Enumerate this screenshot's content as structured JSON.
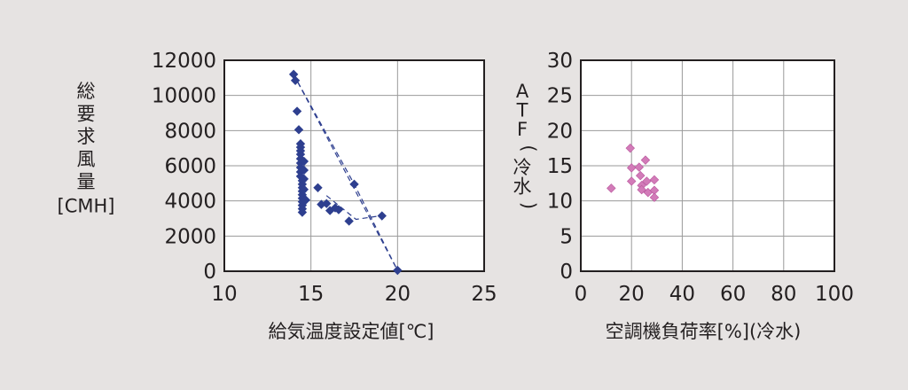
{
  "chart_data": [
    {
      "type": "scatter",
      "xlabel": "給気温度設定値[℃]",
      "ylabel_lines": [
        "総",
        "要",
        "求",
        "風",
        "量",
        "[CMH]"
      ],
      "xlim": [
        10,
        25
      ],
      "ylim": [
        0,
        12000
      ],
      "xticks": [
        "10",
        "15",
        "20",
        "25"
      ],
      "yticks": [
        "0",
        "2000",
        "4000",
        "6000",
        "8000",
        "10000",
        "12000"
      ],
      "grid": true,
      "marker": "diamond",
      "marker_color": "#2e3f8f",
      "points": [
        [
          14.0,
          11200
        ],
        [
          14.1,
          10850
        ],
        [
          14.2,
          9100
        ],
        [
          14.3,
          8050
        ],
        [
          14.4,
          7250
        ],
        [
          14.4,
          7050
        ],
        [
          14.4,
          6850
        ],
        [
          14.4,
          6650
        ],
        [
          14.4,
          6400
        ],
        [
          14.4,
          6150
        ],
        [
          14.4,
          5900
        ],
        [
          14.4,
          5650
        ],
        [
          14.4,
          5400
        ],
        [
          14.5,
          5150
        ],
        [
          14.5,
          4950
        ],
        [
          14.5,
          4750
        ],
        [
          14.5,
          4550
        ],
        [
          14.5,
          4350
        ],
        [
          14.5,
          4150
        ],
        [
          14.5,
          3950
        ],
        [
          14.5,
          3750
        ],
        [
          14.5,
          3550
        ],
        [
          14.5,
          3350
        ],
        [
          14.6,
          6250
        ],
        [
          14.6,
          5750
        ],
        [
          14.6,
          5250
        ],
        [
          14.6,
          4650
        ],
        [
          14.7,
          4050
        ],
        [
          15.4,
          4750
        ],
        [
          15.6,
          3800
        ],
        [
          15.9,
          3850
        ],
        [
          16.1,
          3450
        ],
        [
          16.4,
          3600
        ],
        [
          16.6,
          3500
        ],
        [
          17.2,
          2850
        ],
        [
          17.5,
          4950
        ],
        [
          19.1,
          3150
        ],
        [
          20.0,
          50
        ]
      ],
      "dashed_lines": [
        [
          [
            14.0,
            11200
          ],
          [
            20.0,
            50
          ]
        ],
        [
          [
            14.0,
            11200
          ],
          [
            17.5,
            4950
          ],
          [
            20.0,
            50
          ]
        ],
        [
          [
            15.9,
            4300
          ],
          [
            17.6,
            2950
          ],
          [
            19.0,
            3150
          ]
        ]
      ]
    },
    {
      "type": "scatter",
      "xlabel": "空調機負荷率[%](冷水)",
      "ylabel_lines": [
        "A",
        "T",
        "F",
        "(",
        "冷",
        "水",
        ")"
      ],
      "xlim": [
        0,
        100
      ],
      "ylim": [
        0,
        30
      ],
      "xticks": [
        "0",
        "20",
        "40",
        "60",
        "80",
        "100"
      ],
      "yticks": [
        "0",
        "5",
        "10",
        "15",
        "20",
        "25",
        "30"
      ],
      "grid": true,
      "marker": "diamond",
      "marker_color": "#d27bb8",
      "points": [
        [
          12.0,
          11.8
        ],
        [
          19.5,
          17.5
        ],
        [
          20.0,
          14.7
        ],
        [
          20.0,
          12.8
        ],
        [
          23.0,
          14.8
        ],
        [
          23.5,
          13.6
        ],
        [
          24.0,
          12.2
        ],
        [
          24.0,
          11.6
        ],
        [
          25.5,
          15.8
        ],
        [
          26.0,
          12.8
        ],
        [
          26.5,
          11.2
        ],
        [
          29.0,
          13.0
        ],
        [
          29.0,
          11.5
        ],
        [
          29.0,
          10.5
        ]
      ]
    }
  ]
}
